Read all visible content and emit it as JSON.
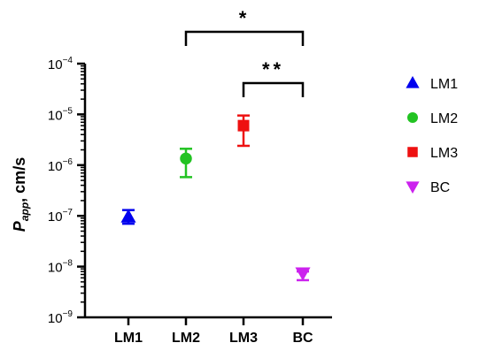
{
  "chart_data": {
    "type": "scatter",
    "yscale": "log",
    "ylim": [
      1e-09,
      0.0001
    ],
    "ylabel": {
      "main": "P",
      "sub": "app",
      "suffix": ", cm/s"
    },
    "yticks": [
      {
        "value": 0.0001,
        "base": "10",
        "exp": "−4"
      },
      {
        "value": 1e-05,
        "base": "10",
        "exp": "−5"
      },
      {
        "value": 1e-06,
        "base": "10",
        "exp": "−6"
      },
      {
        "value": 1e-07,
        "base": "10",
        "exp": "−7"
      },
      {
        "value": 1e-08,
        "base": "10",
        "exp": "−8"
      },
      {
        "value": 1e-09,
        "base": "10",
        "exp": "−9"
      }
    ],
    "categories": [
      "LM1",
      "LM2",
      "LM3",
      "BC"
    ],
    "series": [
      {
        "name": "LM1",
        "category": "LM1",
        "value": 9.5e-08,
        "err_low": 7e-08,
        "err_high": 1.3e-07,
        "color": "#0000ee",
        "marker": "triangle-up"
      },
      {
        "name": "LM2",
        "category": "LM2",
        "value": 1.35e-06,
        "err_low": 5.8e-07,
        "err_high": 2.1e-06,
        "color": "#22c322",
        "marker": "circle"
      },
      {
        "name": "LM3",
        "category": "LM3",
        "value": 6e-06,
        "err_low": 2.4e-06,
        "err_high": 9.5e-06,
        "color": "#ee1111",
        "marker": "square"
      },
      {
        "name": "BC",
        "category": "BC",
        "value": 7.5e-09,
        "err_low": 5.4e-09,
        "err_high": 8e-09,
        "color": "#cc22ee",
        "marker": "triangle-down"
      }
    ],
    "significance": [
      {
        "from": "LM2",
        "to": "BC",
        "label": "*"
      },
      {
        "from": "LM3",
        "to": "BC",
        "label": "**"
      }
    ],
    "legend_position": "right"
  }
}
